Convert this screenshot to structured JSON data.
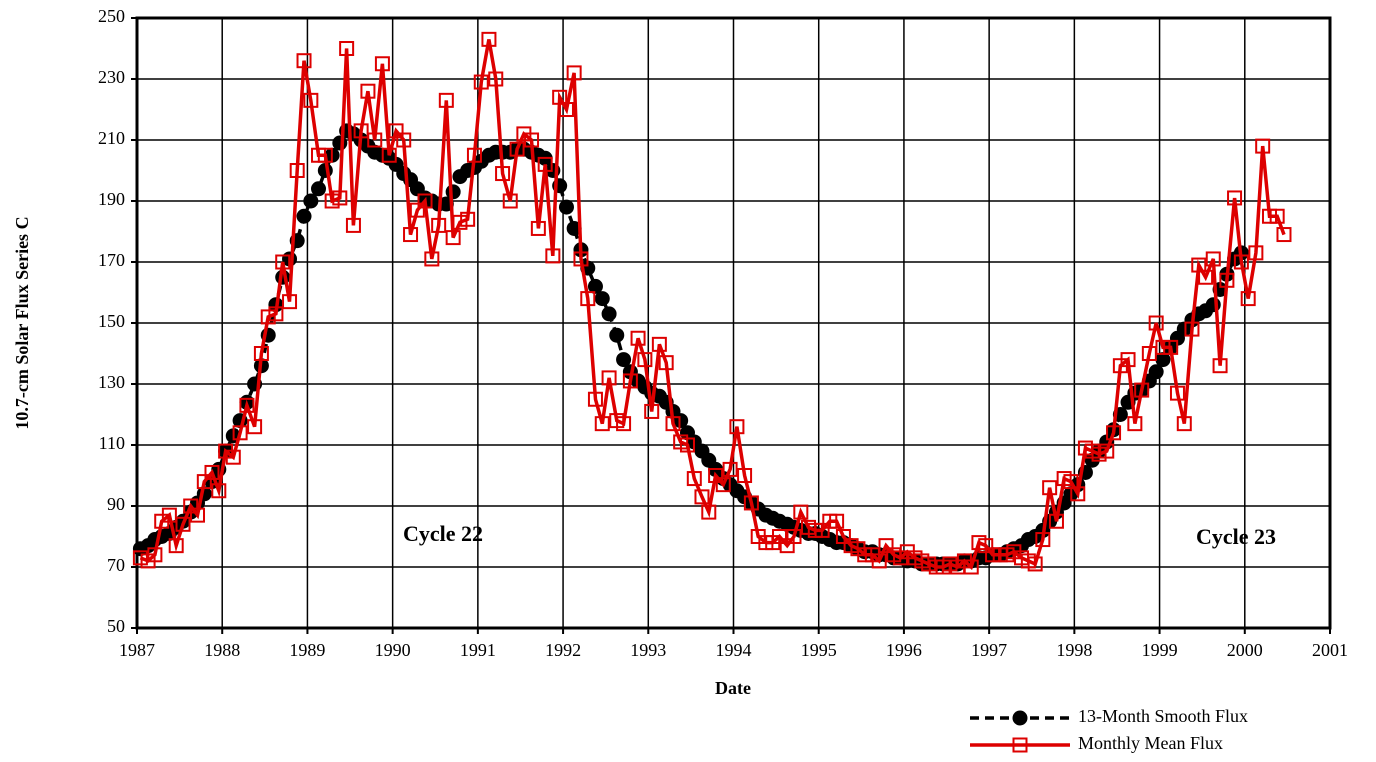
{
  "chart_data": {
    "type": "line",
    "x_label": "Date",
    "y_label": "10.7-cm Solar Flux Series C",
    "annotations": [
      "Cycle 22",
      "Cycle 23"
    ],
    "xlim": [
      1987,
      2001
    ],
    "xticks": [
      1987,
      1988,
      1989,
      1990,
      1991,
      1992,
      1993,
      1994,
      1995,
      1996,
      1997,
      1998,
      1999,
      2000,
      2001
    ],
    "ylim": [
      50,
      250
    ],
    "yticks": [
      50,
      70,
      90,
      110,
      130,
      150,
      170,
      190,
      210,
      230,
      250
    ],
    "grid": true,
    "legend": "bottom-right",
    "x": [
      1987.04,
      1987.13,
      1987.21,
      1987.29,
      1987.38,
      1987.46,
      1987.54,
      1987.63,
      1987.71,
      1987.79,
      1987.88,
      1987.96,
      1988.04,
      1988.13,
      1988.21,
      1988.29,
      1988.38,
      1988.46,
      1988.54,
      1988.63,
      1988.71,
      1988.79,
      1988.88,
      1988.96,
      1989.04,
      1989.13,
      1989.21,
      1989.29,
      1989.38,
      1989.46,
      1989.54,
      1989.63,
      1989.71,
      1989.79,
      1989.88,
      1989.96,
      1990.04,
      1990.13,
      1990.21,
      1990.29,
      1990.38,
      1990.46,
      1990.54,
      1990.63,
      1990.71,
      1990.79,
      1990.88,
      1990.96,
      1991.04,
      1991.13,
      1991.21,
      1991.29,
      1991.38,
      1991.46,
      1991.54,
      1991.63,
      1991.71,
      1991.79,
      1991.88,
      1991.96,
      1992.04,
      1992.13,
      1992.21,
      1992.29,
      1992.38,
      1992.46,
      1992.54,
      1992.63,
      1992.71,
      1992.79,
      1992.88,
      1992.96,
      1993.04,
      1993.13,
      1993.21,
      1993.29,
      1993.38,
      1993.46,
      1993.54,
      1993.63,
      1993.71,
      1993.79,
      1993.88,
      1993.96,
      1994.04,
      1994.13,
      1994.21,
      1994.29,
      1994.38,
      1994.46,
      1994.54,
      1994.63,
      1994.71,
      1994.79,
      1994.88,
      1994.96,
      1995.04,
      1995.13,
      1995.21,
      1995.29,
      1995.38,
      1995.46,
      1995.54,
      1995.63,
      1995.71,
      1995.79,
      1995.88,
      1995.96,
      1996.04,
      1996.13,
      1996.21,
      1996.29,
      1996.38,
      1996.46,
      1996.54,
      1996.63,
      1996.71,
      1996.79,
      1996.88,
      1996.96,
      1997.04,
      1997.13,
      1997.21,
      1997.29,
      1997.38,
      1997.46,
      1997.54,
      1997.63,
      1997.71,
      1997.79,
      1997.88,
      1997.96,
      1998.04,
      1998.13,
      1998.21,
      1998.29,
      1998.38,
      1998.46,
      1998.54,
      1998.63,
      1998.71,
      1998.79,
      1998.88,
      1998.96,
      1999.04,
      1999.13,
      1999.21,
      1999.29,
      1999.38,
      1999.46,
      1999.54,
      1999.63,
      1999.71,
      1999.79,
      1999.88,
      1999.96,
      2000.04,
      2000.13,
      2000.21,
      2000.29,
      2000.38,
      2000.46
    ],
    "series": [
      {
        "name": "13-Month Smooth Flux",
        "color": "#000000",
        "marker": "circle",
        "dashed": true,
        "values": [
          76,
          77,
          79,
          80,
          81,
          83,
          85,
          88,
          91,
          94,
          98,
          102,
          108,
          113,
          118,
          124,
          130,
          136,
          146,
          156,
          165,
          171,
          177,
          185,
          190,
          194,
          200,
          205,
          209,
          213,
          212,
          210,
          208,
          206,
          205,
          204,
          202,
          199,
          197,
          194,
          191,
          190,
          189,
          189,
          193,
          198,
          200,
          201,
          203,
          205,
          206,
          206,
          206,
          207,
          207,
          206,
          205,
          204,
          200,
          195,
          188,
          181,
          174,
          168,
          162,
          158,
          153,
          146,
          138,
          134,
          131,
          129,
          127,
          126,
          124,
          121,
          118,
          114,
          111,
          108,
          105,
          102,
          99,
          97,
          95,
          93,
          91,
          89,
          87,
          86,
          85,
          84,
          83,
          82,
          81,
          81,
          80,
          79,
          78,
          78,
          77,
          76,
          75,
          75,
          74,
          74,
          73,
          73,
          72,
          72,
          71,
          71,
          71,
          71,
          71,
          71,
          72,
          72,
          73,
          73,
          74,
          74,
          75,
          76,
          77,
          79,
          80,
          82,
          85,
          88,
          91,
          94,
          97,
          101,
          105,
          108,
          111,
          115,
          120,
          124,
          127,
          128,
          131,
          134,
          138,
          142,
          145,
          148,
          151,
          153,
          154,
          156,
          161,
          166,
          171,
          173,
          null,
          null,
          null,
          null,
          null,
          null
        ]
      },
      {
        "name": "Monthly Mean Flux",
        "color": "#dd0000",
        "marker": "square",
        "dashed": false,
        "values": [
          73,
          72,
          74,
          85,
          87,
          77,
          84,
          90,
          87,
          98,
          101,
          95,
          108,
          106,
          114,
          123,
          116,
          140,
          152,
          153,
          170,
          157,
          200,
          236,
          223,
          205,
          205,
          190,
          191,
          240,
          182,
          213,
          226,
          210,
          235,
          205,
          213,
          210,
          179,
          187,
          190,
          171,
          182,
          223,
          178,
          183,
          184,
          205,
          229,
          243,
          230,
          199,
          190,
          207,
          212,
          210,
          181,
          202,
          172,
          224,
          220,
          232,
          171,
          158,
          125,
          117,
          132,
          118,
          117,
          131,
          145,
          138,
          121,
          143,
          137,
          117,
          111,
          110,
          99,
          93,
          88,
          100,
          97,
          102,
          116,
          100,
          91,
          80,
          78,
          78,
          80,
          77,
          80,
          88,
          83,
          82,
          82,
          85,
          85,
          80,
          77,
          76,
          74,
          74,
          72,
          77,
          74,
          73,
          75,
          73,
          72,
          71,
          70,
          70,
          71,
          70,
          72,
          70,
          78,
          77,
          74,
          74,
          74,
          75,
          73,
          72,
          71,
          79,
          96,
          85,
          99,
          98,
          94,
          109,
          108,
          107,
          108,
          114,
          136,
          138,
          117,
          128,
          140,
          150,
          142,
          142,
          127,
          117,
          148,
          169,
          165,
          171,
          136,
          164,
          191,
          170,
          158,
          173,
          208,
          185,
          185,
          179
        ]
      }
    ]
  }
}
